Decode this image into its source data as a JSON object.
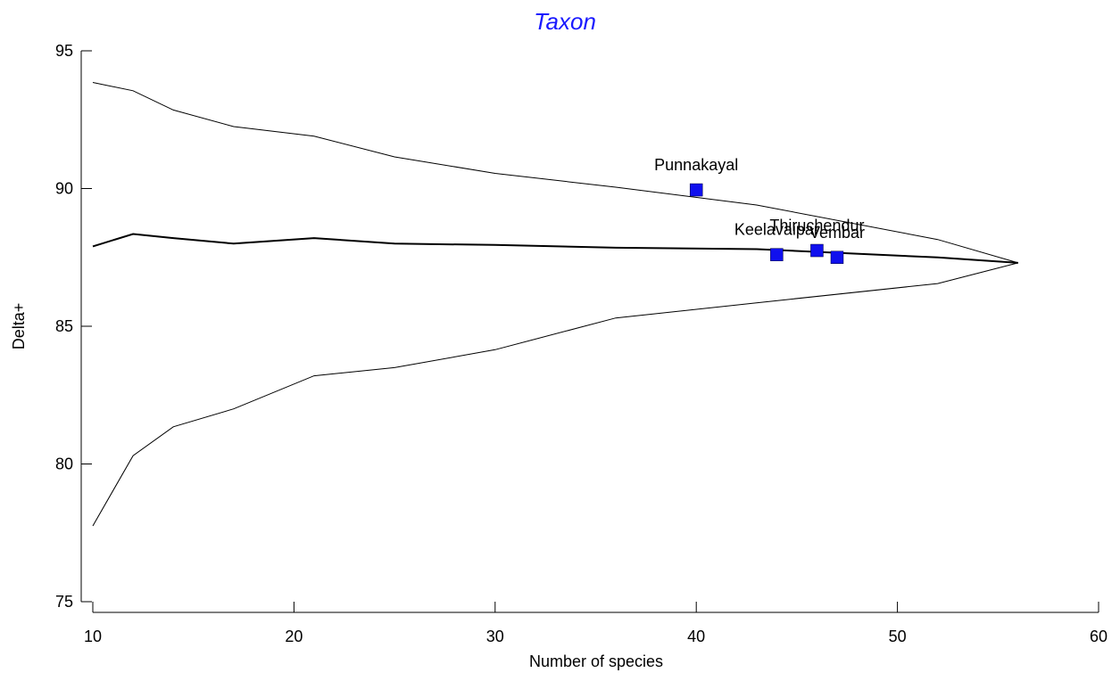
{
  "chart_data": {
    "type": "scatter",
    "title": "Taxon",
    "xlabel": "Number of species",
    "ylabel": "Delta+",
    "xlim": [
      10,
      60
    ],
    "ylim": [
      75,
      95
    ],
    "xticks": [
      10,
      20,
      30,
      40,
      50,
      60
    ],
    "yticks": [
      75,
      80,
      85,
      90,
      95
    ],
    "grid": false,
    "colors": {
      "title": "#1a1aff",
      "points": "#1010ee",
      "lines": "#000000"
    },
    "funnel": {
      "upper": {
        "x": [
          10,
          12,
          14,
          17,
          21,
          25,
          30,
          36,
          43,
          52,
          56
        ],
        "y": [
          93.85,
          93.55,
          92.85,
          92.25,
          91.9,
          91.15,
          90.55,
          90.05,
          89.4,
          88.15,
          87.3
        ]
      },
      "mean": {
        "x": [
          10,
          12,
          14,
          17,
          21,
          25,
          30,
          36,
          43,
          52,
          56
        ],
        "y": [
          87.9,
          88.35,
          88.2,
          88.0,
          88.2,
          88.0,
          87.95,
          87.85,
          87.8,
          87.5,
          87.3
        ]
      },
      "lower": {
        "x": [
          10,
          12,
          14,
          17,
          21,
          25,
          30,
          36,
          43,
          52,
          56
        ],
        "y": [
          77.75,
          80.3,
          81.35,
          82.0,
          83.2,
          83.5,
          84.15,
          85.3,
          85.85,
          86.55,
          87.3
        ]
      }
    },
    "points": [
      {
        "label": "Punnakayal",
        "x": 40,
        "y": 89.95
      },
      {
        "label": "Keelavaipar",
        "x": 44,
        "y": 87.6
      },
      {
        "label": "Thiruchendur",
        "x": 46,
        "y": 87.75
      },
      {
        "label": "Vembar",
        "x": 47,
        "y": 87.5
      }
    ]
  }
}
